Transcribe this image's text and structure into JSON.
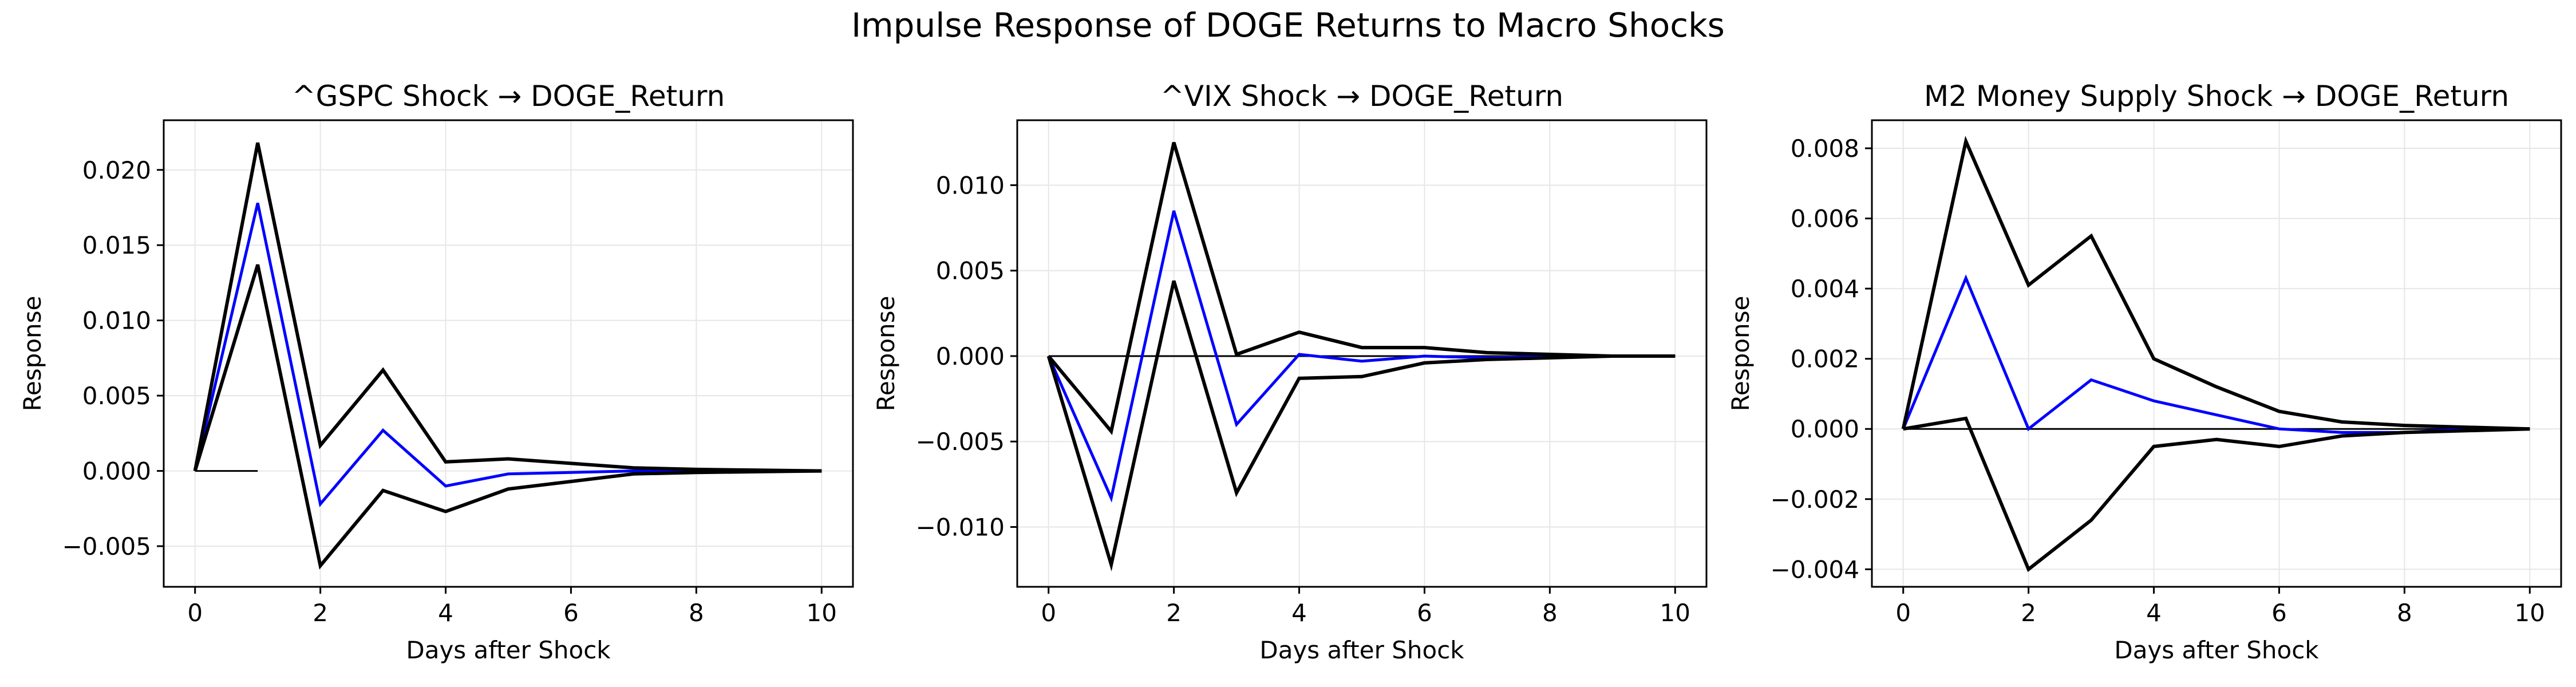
{
  "figure": {
    "suptitle": "Impulse Response of DOGE Returns to Macro Shocks"
  },
  "colors": {
    "irf": "#0000ff",
    "bands": "#000000",
    "zero_line": "#000000",
    "grid": "#e6e6e6",
    "axes": "#000000"
  },
  "chart_data": [
    {
      "type": "line",
      "title": "^GSPC Shock → DOGE_Return",
      "xlabel": "Days after Shock",
      "ylabel": "Response",
      "xlim": [
        -0.5,
        10.5
      ],
      "ylim": [
        -0.0077,
        0.0233
      ],
      "xticks": [
        0,
        2,
        4,
        6,
        8,
        10
      ],
      "xtick_labels": [
        "0",
        "2",
        "4",
        "6",
        "8",
        "10"
      ],
      "yticks": [
        -0.005,
        0,
        0.005,
        0.01,
        0.015,
        0.02
      ],
      "ytick_labels": [
        "−0.005",
        "0.000",
        "0.005",
        "0.010",
        "0.015",
        "0.020"
      ],
      "grid": true,
      "x": [
        0,
        1,
        2,
        3,
        4,
        5,
        6,
        7,
        8,
        9,
        10
      ],
      "zero_segment": [
        0,
        1
      ],
      "series": [
        {
          "role": "irf",
          "values": [
            0,
            0.0178,
            -0.0022,
            0.0027,
            -0.001,
            -0.0002,
            -0.0001,
            0,
            0,
            0,
            0
          ]
        },
        {
          "role": "upper",
          "values": [
            0,
            0.0218,
            0.0017,
            0.0067,
            0.0006,
            0.0008,
            0.0005,
            0.0002,
            0.0001,
            5e-05,
            0
          ]
        },
        {
          "role": "lower",
          "values": [
            0,
            0.0137,
            -0.0063,
            -0.0013,
            -0.0027,
            -0.0012,
            -0.0007,
            -0.0002,
            -0.0001,
            -5e-05,
            0
          ]
        }
      ]
    },
    {
      "type": "line",
      "title": "^VIX Shock → DOGE_Return",
      "xlabel": "Days after Shock",
      "ylabel": "Response",
      "xlim": [
        -0.5,
        10.5
      ],
      "ylim": [
        -0.0135,
        0.0138
      ],
      "xticks": [
        0,
        2,
        4,
        6,
        8,
        10
      ],
      "xtick_labels": [
        "0",
        "2",
        "4",
        "6",
        "8",
        "10"
      ],
      "yticks": [
        -0.01,
        -0.005,
        0,
        0.005,
        0.01
      ],
      "ytick_labels": [
        "−0.010",
        "−0.005",
        "0.000",
        "0.005",
        "0.010"
      ],
      "grid": true,
      "x": [
        0,
        1,
        2,
        3,
        4,
        5,
        6,
        7,
        8,
        9,
        10
      ],
      "zero_segment": [
        0,
        10
      ],
      "series": [
        {
          "role": "irf",
          "values": [
            0,
            -0.0083,
            0.0085,
            -0.004,
            0.0001,
            -0.0003,
            0,
            -0.0001,
            0,
            0,
            0
          ]
        },
        {
          "role": "upper",
          "values": [
            0,
            -0.0044,
            0.0125,
            0.0001,
            0.0014,
            0.0005,
            0.0005,
            0.0002,
            0.0001,
            0,
            0
          ]
        },
        {
          "role": "lower",
          "values": [
            0,
            -0.0122,
            0.0044,
            -0.008,
            -0.0013,
            -0.0012,
            -0.0004,
            -0.0002,
            -0.0001,
            0,
            0
          ]
        }
      ]
    },
    {
      "type": "line",
      "title": "M2 Money Supply Shock → DOGE_Return",
      "xlabel": "Days after Shock",
      "ylabel": "Response",
      "xlim": [
        -0.5,
        10.5
      ],
      "ylim": [
        -0.0045,
        0.0088
      ],
      "xticks": [
        0,
        2,
        4,
        6,
        8,
        10
      ],
      "xtick_labels": [
        "0",
        "2",
        "4",
        "6",
        "8",
        "10"
      ],
      "yticks": [
        -0.004,
        -0.002,
        0,
        0.002,
        0.004,
        0.006,
        0.008
      ],
      "ytick_labels": [
        "−0.004",
        "−0.002",
        "0.000",
        "0.002",
        "0.004",
        "0.006",
        "0.008"
      ],
      "grid": true,
      "x": [
        0,
        1,
        2,
        3,
        4,
        5,
        6,
        7,
        8,
        9,
        10
      ],
      "zero_segment": [
        0,
        10
      ],
      "series": [
        {
          "role": "irf",
          "values": [
            0,
            0.0043,
            0,
            0.0014,
            0.0008,
            0.0004,
            0,
            -0.0001,
            -0.0001,
            0,
            0
          ]
        },
        {
          "role": "upper",
          "values": [
            0,
            0.0082,
            0.0041,
            0.0055,
            0.002,
            0.0012,
            0.0005,
            0.0002,
            0.0001,
            5e-05,
            0
          ]
        },
        {
          "role": "lower",
          "values": [
            0,
            0.0003,
            -0.004,
            -0.0026,
            -0.0005,
            -0.0003,
            -0.0005,
            -0.0002,
            -0.0001,
            -5e-05,
            0
          ]
        }
      ]
    }
  ]
}
